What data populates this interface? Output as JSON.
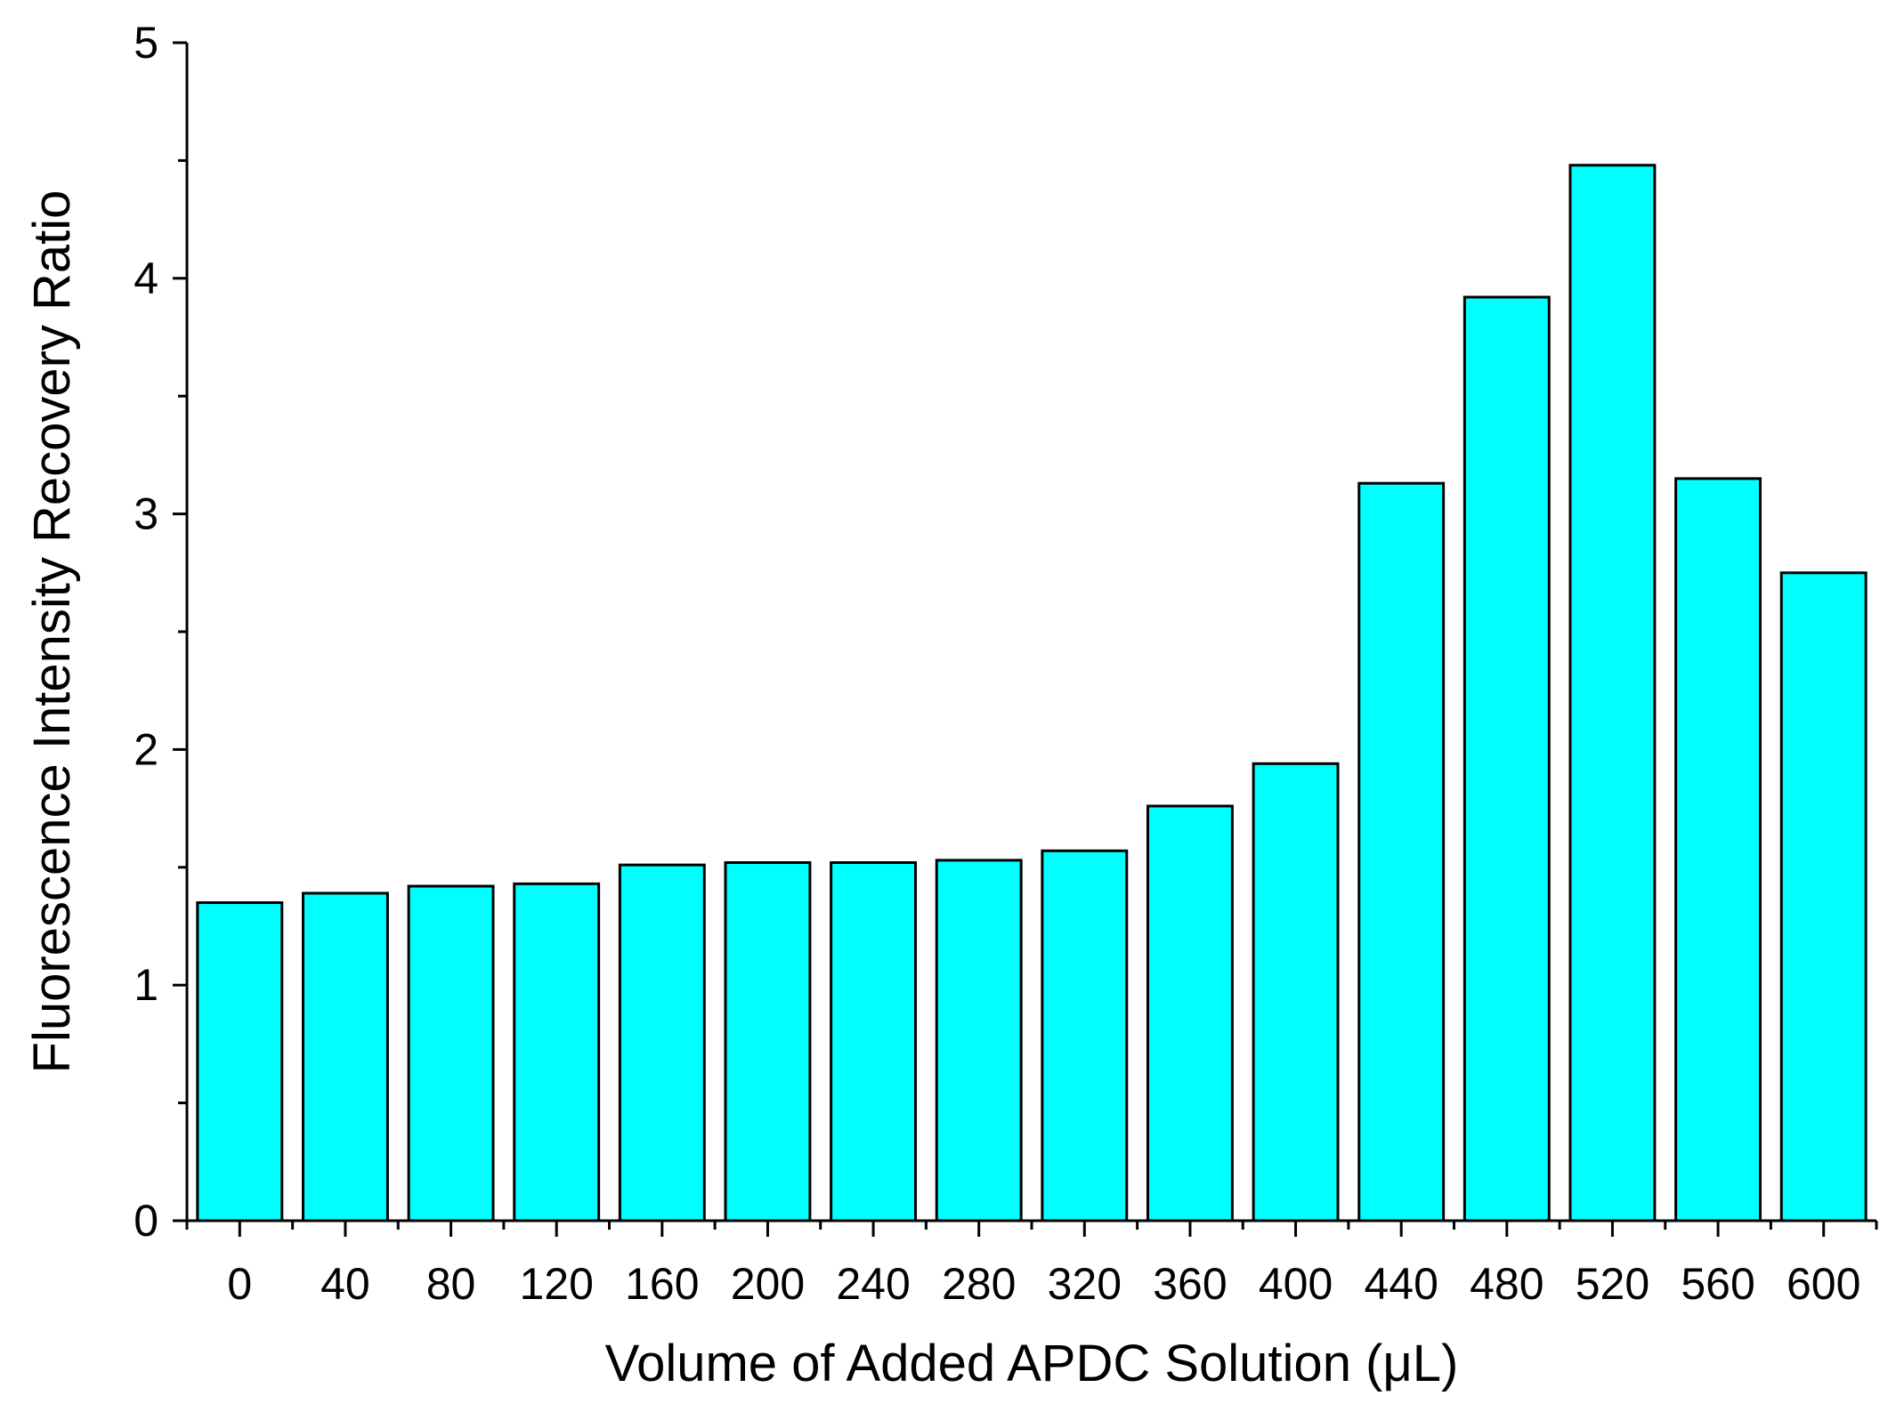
{
  "chart_data": {
    "type": "bar",
    "title": "",
    "xlabel": "Volume of Added APDC Solution (μL)",
    "ylabel": "Fluorescence Intensity Recovery Ratio",
    "categories": [
      "0",
      "40",
      "80",
      "120",
      "160",
      "200",
      "240",
      "280",
      "320",
      "360",
      "400",
      "440",
      "480",
      "520",
      "560",
      "600"
    ],
    "values": [
      1.35,
      1.39,
      1.42,
      1.43,
      1.51,
      1.52,
      1.52,
      1.53,
      1.57,
      1.76,
      1.94,
      3.13,
      3.92,
      4.48,
      3.15,
      2.75
    ],
    "ylim": [
      0,
      5
    ],
    "yticks": [
      "0",
      "1",
      "2",
      "3",
      "4",
      "5"
    ],
    "grid": false,
    "legend": "none",
    "colors": {
      "bar_fill": "#00ffff",
      "bar_stroke": "#000000",
      "axis": "#000000"
    }
  }
}
